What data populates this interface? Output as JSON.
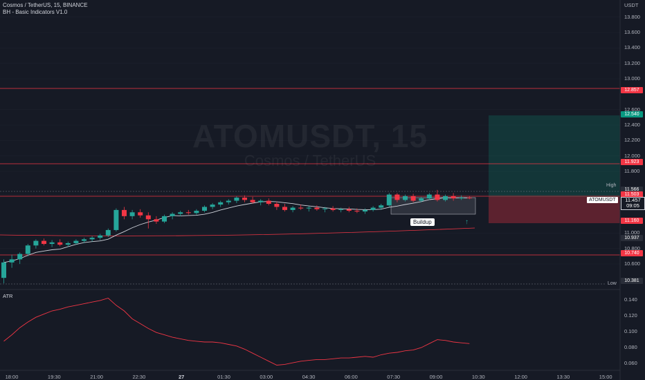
{
  "header": {
    "symbol_line": "Cosmos / TetherUS, 15, BINANCE",
    "indicator_line": "BH - Basic Indicators V1.0",
    "currency": "USDT"
  },
  "watermark": {
    "symbol": "ATOMUSDT, 15",
    "name": "Cosmos / TetherUS"
  },
  "price_axis": [
    "13.800",
    "13.600",
    "13.400",
    "13.200",
    "13.000",
    "12.600",
    "12.400",
    "12.200",
    "12.000",
    "11.800",
    "11.500",
    "11.000",
    "10.800",
    "10.600"
  ],
  "price_badges": [
    {
      "label": "12.857",
      "color": "#f23645"
    },
    {
      "label": "12.540",
      "color": "#089981"
    },
    {
      "label": "11.923",
      "color": "#f23645"
    },
    {
      "label": "11.566",
      "color": "#2a2e39"
    },
    {
      "label": "11.503",
      "color": "#f23645"
    },
    {
      "label": "11.160",
      "color": "#f23645"
    },
    {
      "label": "10.937",
      "color": "#2a2e39"
    },
    {
      "label": "10.740",
      "color": "#f23645"
    },
    {
      "label": "10.381",
      "color": "#2a2e39"
    }
  ],
  "high_label": "High",
  "low_label": "Low",
  "current": {
    "symbol": "ATOMUSDT",
    "price": "11.457",
    "countdown": "09:05"
  },
  "annotation": {
    "buildup": "Buildup"
  },
  "atr": {
    "label": "ATR",
    "axis": [
      "0.140",
      "0.120",
      "0.100",
      "0.080",
      "0.060"
    ]
  },
  "time_axis": [
    {
      "label": "18:00",
      "bold": false
    },
    {
      "label": "19:30",
      "bold": false
    },
    {
      "label": "21:00",
      "bold": false
    },
    {
      "label": "22:30",
      "bold": false
    },
    {
      "label": "27",
      "bold": true
    },
    {
      "label": "01:30",
      "bold": false
    },
    {
      "label": "03:00",
      "bold": false
    },
    {
      "label": "04:30",
      "bold": false
    },
    {
      "label": "06:00",
      "bold": false
    },
    {
      "label": "07:30",
      "bold": false
    },
    {
      "label": "09:00",
      "bold": false
    },
    {
      "label": "10:30",
      "bold": false
    },
    {
      "label": "12:00",
      "bold": false
    },
    {
      "label": "13:30",
      "bold": false
    },
    {
      "label": "15:00",
      "bold": false
    }
  ],
  "colors": {
    "up": "#26a69a",
    "down": "#f23645",
    "background": "#161a25",
    "level_line": "#f23645"
  },
  "chart_data": {
    "type": "candlestick",
    "interval": "15",
    "candles": [
      {
        "o": 10.42,
        "h": 10.66,
        "l": 10.35,
        "c": 10.62
      },
      {
        "o": 10.62,
        "h": 10.72,
        "l": 10.55,
        "c": 10.66
      },
      {
        "o": 10.66,
        "h": 10.75,
        "l": 10.6,
        "c": 10.73
      },
      {
        "o": 10.73,
        "h": 10.86,
        "l": 10.7,
        "c": 10.84
      },
      {
        "o": 10.84,
        "h": 10.92,
        "l": 10.8,
        "c": 10.9
      },
      {
        "o": 10.9,
        "h": 10.93,
        "l": 10.84,
        "c": 10.86
      },
      {
        "o": 10.86,
        "h": 10.91,
        "l": 10.82,
        "c": 10.88
      },
      {
        "o": 10.88,
        "h": 10.92,
        "l": 10.83,
        "c": 10.85
      },
      {
        "o": 10.85,
        "h": 10.89,
        "l": 10.82,
        "c": 10.87
      },
      {
        "o": 10.87,
        "h": 10.92,
        "l": 10.85,
        "c": 10.9
      },
      {
        "o": 10.9,
        "h": 10.94,
        "l": 10.87,
        "c": 10.92
      },
      {
        "o": 10.92,
        "h": 10.96,
        "l": 10.89,
        "c": 10.94
      },
      {
        "o": 10.94,
        "h": 10.99,
        "l": 10.91,
        "c": 10.97
      },
      {
        "o": 10.97,
        "h": 11.06,
        "l": 10.95,
        "c": 11.04
      },
      {
        "o": 11.04,
        "h": 11.32,
        "l": 11.02,
        "c": 11.3
      },
      {
        "o": 11.3,
        "h": 11.34,
        "l": 11.18,
        "c": 11.22
      },
      {
        "o": 11.22,
        "h": 11.3,
        "l": 11.18,
        "c": 11.27
      },
      {
        "o": 11.27,
        "h": 11.31,
        "l": 11.2,
        "c": 11.23
      },
      {
        "o": 11.23,
        "h": 11.27,
        "l": 11.06,
        "c": 11.18
      },
      {
        "o": 11.18,
        "h": 11.22,
        "l": 11.12,
        "c": 11.15
      },
      {
        "o": 11.15,
        "h": 11.24,
        "l": 11.13,
        "c": 11.22
      },
      {
        "o": 11.22,
        "h": 11.27,
        "l": 11.18,
        "c": 11.25
      },
      {
        "o": 11.25,
        "h": 11.29,
        "l": 11.22,
        "c": 11.27
      },
      {
        "o": 11.27,
        "h": 11.3,
        "l": 11.24,
        "c": 11.26
      },
      {
        "o": 11.26,
        "h": 11.31,
        "l": 11.24,
        "c": 11.29
      },
      {
        "o": 11.29,
        "h": 11.36,
        "l": 11.27,
        "c": 11.34
      },
      {
        "o": 11.34,
        "h": 11.39,
        "l": 11.31,
        "c": 11.37
      },
      {
        "o": 11.37,
        "h": 11.42,
        "l": 11.34,
        "c": 11.4
      },
      {
        "o": 11.4,
        "h": 11.44,
        "l": 11.37,
        "c": 11.42
      },
      {
        "o": 11.42,
        "h": 11.48,
        "l": 11.39,
        "c": 11.46
      },
      {
        "o": 11.46,
        "h": 11.49,
        "l": 11.4,
        "c": 11.43
      },
      {
        "o": 11.43,
        "h": 11.47,
        "l": 11.38,
        "c": 11.4
      },
      {
        "o": 11.4,
        "h": 11.44,
        "l": 11.36,
        "c": 11.42
      },
      {
        "o": 11.42,
        "h": 11.45,
        "l": 11.36,
        "c": 11.38
      },
      {
        "o": 11.38,
        "h": 11.41,
        "l": 11.3,
        "c": 11.34
      },
      {
        "o": 11.34,
        "h": 11.38,
        "l": 11.28,
        "c": 11.3
      },
      {
        "o": 11.3,
        "h": 11.35,
        "l": 11.27,
        "c": 11.33
      },
      {
        "o": 11.33,
        "h": 11.37,
        "l": 11.3,
        "c": 11.32
      },
      {
        "o": 11.32,
        "h": 11.35,
        "l": 11.28,
        "c": 11.33
      },
      {
        "o": 11.33,
        "h": 11.36,
        "l": 11.29,
        "c": 11.31
      },
      {
        "o": 11.31,
        "h": 11.34,
        "l": 11.27,
        "c": 11.32
      },
      {
        "o": 11.32,
        "h": 11.35,
        "l": 11.28,
        "c": 11.3
      },
      {
        "o": 11.3,
        "h": 11.33,
        "l": 11.27,
        "c": 11.31
      },
      {
        "o": 11.31,
        "h": 11.34,
        "l": 11.27,
        "c": 11.29
      },
      {
        "o": 11.29,
        "h": 11.32,
        "l": 11.26,
        "c": 11.28
      },
      {
        "o": 11.28,
        "h": 11.32,
        "l": 11.25,
        "c": 11.3
      },
      {
        "o": 11.3,
        "h": 11.35,
        "l": 11.28,
        "c": 11.33
      },
      {
        "o": 11.33,
        "h": 11.38,
        "l": 11.3,
        "c": 11.36
      },
      {
        "o": 11.36,
        "h": 11.52,
        "l": 11.34,
        "c": 11.5
      },
      {
        "o": 11.5,
        "h": 11.52,
        "l": 11.4,
        "c": 11.43
      },
      {
        "o": 11.43,
        "h": 11.5,
        "l": 11.41,
        "c": 11.48
      },
      {
        "o": 11.48,
        "h": 11.51,
        "l": 11.4,
        "c": 11.42
      },
      {
        "o": 11.42,
        "h": 11.47,
        "l": 11.4,
        "c": 11.45
      },
      {
        "o": 11.45,
        "h": 11.52,
        "l": 11.43,
        "c": 11.5
      },
      {
        "o": 11.5,
        "h": 11.56,
        "l": 11.41,
        "c": 11.43
      },
      {
        "o": 11.43,
        "h": 11.5,
        "l": 11.41,
        "c": 11.48
      },
      {
        "o": 11.48,
        "h": 11.52,
        "l": 11.42,
        "c": 11.45
      },
      {
        "o": 11.45,
        "h": 11.49,
        "l": 11.43,
        "c": 11.46
      },
      {
        "o": 11.46,
        "h": 11.48,
        "l": 11.44,
        "c": 11.457
      }
    ],
    "ylim": [
      10.35,
      13.95
    ],
    "atr_values": [
      0.088,
      0.096,
      0.105,
      0.112,
      0.118,
      0.122,
      0.126,
      0.128,
      0.131,
      0.133,
      0.135,
      0.137,
      0.139,
      0.142,
      0.133,
      0.126,
      0.116,
      0.11,
      0.104,
      0.099,
      0.096,
      0.093,
      0.091,
      0.089,
      0.088,
      0.087,
      0.087,
      0.086,
      0.084,
      0.082,
      0.078,
      0.073,
      0.068,
      0.063,
      0.058,
      0.059,
      0.061,
      0.063,
      0.064,
      0.065,
      0.065,
      0.066,
      0.067,
      0.067,
      0.068,
      0.069,
      0.068,
      0.071,
      0.073,
      0.074,
      0.076,
      0.077,
      0.08,
      0.085,
      0.09,
      0.089,
      0.087,
      0.086,
      0.085
    ],
    "atr_ylim": [
      0.055,
      0.145
    ]
  }
}
